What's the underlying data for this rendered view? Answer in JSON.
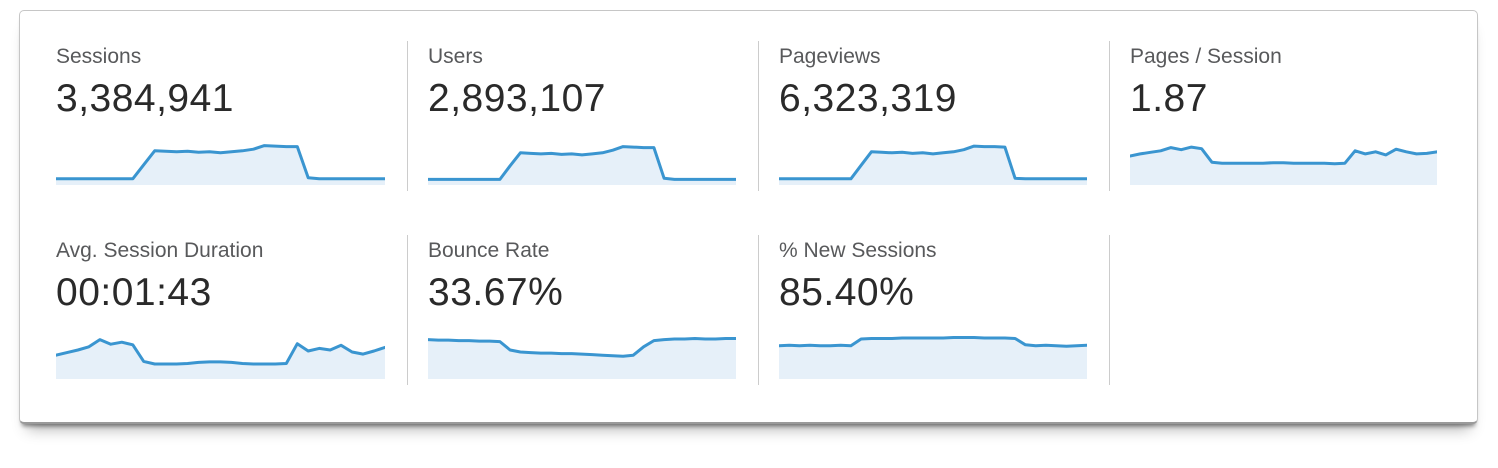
{
  "colors": {
    "spark_line": "#3a95d0",
    "spark_fill": "#e6f0f9",
    "divider": "#cccccc",
    "label_text": "#58595b",
    "value_text": "#2a2a2a"
  },
  "cards": [
    {
      "id": "sessions",
      "label": "Sessions",
      "value": "3,384,941"
    },
    {
      "id": "users",
      "label": "Users",
      "value": "2,893,107"
    },
    {
      "id": "pageviews",
      "label": "Pageviews",
      "value": "6,323,319"
    },
    {
      "id": "pages-per-session",
      "label": "Pages / Session",
      "value": "1.87"
    },
    {
      "id": "avg-session-duration",
      "label": "Avg. Session Duration",
      "value": "00:01:43"
    },
    {
      "id": "bounce-rate",
      "label": "Bounce Rate",
      "value": "33.67%"
    },
    {
      "id": "percent-new-sessions",
      "label": "% New Sessions",
      "value": "85.40%"
    }
  ],
  "chart_data": [
    {
      "type": "area",
      "name": "Sessions sparkline",
      "axes": "none",
      "values": [
        8,
        8,
        8,
        8,
        8,
        8,
        8,
        8,
        35,
        62,
        61,
        60,
        61,
        59,
        60,
        58,
        60,
        62,
        65,
        72,
        71,
        70,
        70,
        10,
        8,
        8,
        8,
        8,
        8,
        8,
        8
      ]
    },
    {
      "type": "area",
      "name": "Users sparkline",
      "axes": "none",
      "values": [
        7,
        7,
        7,
        7,
        7,
        7,
        7,
        7,
        33,
        58,
        57,
        56,
        57,
        55,
        56,
        54,
        56,
        58,
        63,
        70,
        69,
        68,
        68,
        9,
        7,
        7,
        7,
        7,
        7,
        7,
        7
      ]
    },
    {
      "type": "area",
      "name": "Pageviews sparkline",
      "axes": "none",
      "values": [
        8,
        8,
        8,
        8,
        8,
        8,
        8,
        8,
        34,
        60,
        59,
        58,
        59,
        57,
        58,
        56,
        58,
        60,
        64,
        71,
        70,
        70,
        69,
        9,
        8,
        8,
        8,
        8,
        8,
        8,
        8
      ]
    },
    {
      "type": "area",
      "name": "Pages / Session sparkline",
      "axes": "none",
      "values": [
        52,
        56,
        59,
        62,
        68,
        64,
        69,
        66,
        40,
        38,
        38,
        38,
        38,
        38,
        39,
        39,
        38,
        38,
        38,
        38,
        37,
        38,
        62,
        56,
        60,
        54,
        65,
        60,
        56,
        57,
        60
      ]
    },
    {
      "type": "area",
      "name": "Avg. Session Duration sparkline",
      "axes": "none",
      "values": [
        42,
        47,
        52,
        58,
        72,
        63,
        67,
        62,
        30,
        25,
        25,
        25,
        26,
        28,
        29,
        29,
        28,
        26,
        25,
        25,
        25,
        26,
        64,
        50,
        55,
        52,
        61,
        48,
        44,
        50,
        57
      ]
    },
    {
      "type": "area",
      "name": "Bounce Rate sparkline",
      "axes": "none",
      "values": [
        72,
        71,
        71,
        70,
        70,
        69,
        69,
        68,
        52,
        48,
        47,
        46,
        46,
        45,
        45,
        44,
        43,
        42,
        41,
        40,
        42,
        58,
        70,
        72,
        73,
        73,
        74,
        73,
        73,
        74,
        74
      ]
    },
    {
      "type": "area",
      "name": "% New Sessions sparkline",
      "axes": "none",
      "values": [
        60,
        61,
        60,
        61,
        60,
        60,
        61,
        60,
        73,
        74,
        74,
        74,
        75,
        75,
        75,
        75,
        75,
        76,
        76,
        76,
        75,
        75,
        75,
        74,
        62,
        60,
        61,
        60,
        59,
        60,
        61
      ]
    }
  ]
}
